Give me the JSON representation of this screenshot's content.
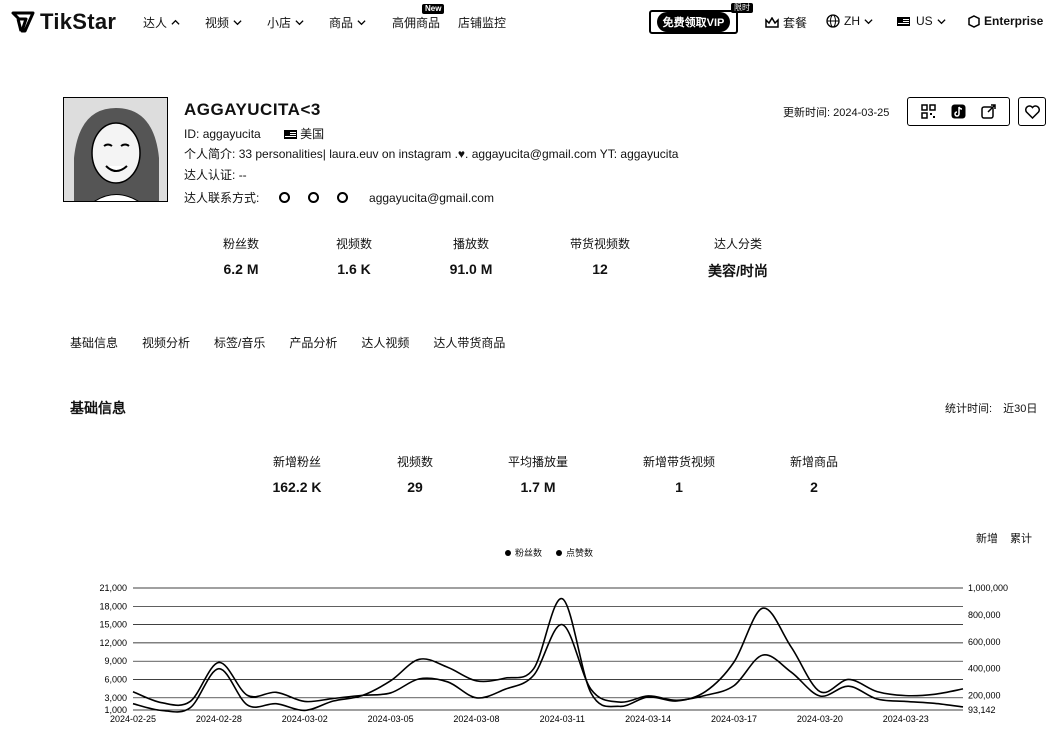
{
  "brand": {
    "name": "TikStar"
  },
  "nav": {
    "items": [
      {
        "label": "达人",
        "chevron": "up"
      },
      {
        "label": "视频",
        "chevron": "down"
      },
      {
        "label": "小店",
        "chevron": "down"
      },
      {
        "label": "商品",
        "chevron": "down"
      },
      {
        "label": "高佣商品",
        "badge": "New"
      },
      {
        "label": "店铺监控"
      }
    ],
    "vip_label": "免费领取VIP",
    "vip_badge": "限时",
    "plan_label": "套餐",
    "lang_label": "ZH",
    "region_label": "US",
    "enterprise_label": "Enterprise"
  },
  "profile": {
    "name": "AGGAYUCITA<3",
    "id_label": "ID:",
    "id_value": "aggayucita",
    "country": "美国",
    "bio_label": "个人简介:",
    "bio_value": "33 personalities| laura.euv on instagram .♥. aggayucita@gmail.com YT: aggayucita",
    "verify_label": "达人认证:",
    "verify_value": "--",
    "contact_label": "达人联系方式:",
    "contact_email": "aggayucita@gmail.com",
    "update_label": "更新时间:",
    "update_value": "2024-03-25"
  },
  "overview_stats": [
    {
      "label": "粉丝数",
      "value": "6.2 M"
    },
    {
      "label": "视频数",
      "value": "1.6 K"
    },
    {
      "label": "播放数",
      "value": "91.0 M"
    },
    {
      "label": "带货视频数",
      "value": "12"
    },
    {
      "label": "达人分类",
      "value": "美容/时尚"
    }
  ],
  "tabs": [
    "基础信息",
    "视频分析",
    "标签/音乐",
    "产品分析",
    "达人视频",
    "达人带货商品"
  ],
  "basic": {
    "title": "基础信息",
    "stat_time_label": "统计时间:",
    "stat_time_value": "近30日",
    "stats": [
      {
        "label": "新增粉丝",
        "value": "162.2 K"
      },
      {
        "label": "视频数",
        "value": "29"
      },
      {
        "label": "平均播放量",
        "value": "1.7 M"
      },
      {
        "label": "新增带货视频",
        "value": "1"
      },
      {
        "label": "新增商品",
        "value": "2"
      }
    ],
    "toggle_new": "新增",
    "toggle_total": "累计"
  },
  "chart_data": {
    "type": "line",
    "x": [
      "2024-02-25",
      "2024-02-26",
      "2024-02-27",
      "2024-02-28",
      "2024-02-29",
      "2024-03-01",
      "2024-03-02",
      "2024-03-03",
      "2024-03-04",
      "2024-03-05",
      "2024-03-06",
      "2024-03-07",
      "2024-03-08",
      "2024-03-09",
      "2024-03-10",
      "2024-03-11",
      "2024-03-12",
      "2024-03-13",
      "2024-03-14",
      "2024-03-15",
      "2024-03-16",
      "2024-03-17",
      "2024-03-18",
      "2024-03-19",
      "2024-03-20",
      "2024-03-21",
      "2024-03-22",
      "2024-03-23",
      "2024-03-24",
      "2024-03-25"
    ],
    "x_tick_labels": [
      "2024-02-25",
      "2024-02-28",
      "2024-03-02",
      "2024-03-05",
      "2024-03-08",
      "2024-03-11",
      "2024-03-14",
      "2024-03-17",
      "2024-03-20",
      "2024-03-23"
    ],
    "series": [
      {
        "name": "粉丝数",
        "axis": "left",
        "values": [
          4000,
          2200,
          2400,
          8800,
          3400,
          3900,
          2400,
          2900,
          3400,
          3800,
          6100,
          5600,
          3000,
          4400,
          6700,
          15000,
          4400,
          2300,
          3300,
          2600,
          3400,
          5000,
          10000,
          7200,
          3300,
          4900,
          2800,
          2400,
          2100,
          1500
        ]
      },
      {
        "name": "点赞数",
        "axis": "right",
        "values": [
          140000,
          90000,
          110000,
          400000,
          130000,
          140000,
          90000,
          160000,
          200000,
          310000,
          470000,
          410000,
          310000,
          330000,
          400000,
          920000,
          220000,
          120000,
          190000,
          160000,
          230000,
          450000,
          850000,
          560000,
          230000,
          320000,
          230000,
          200000,
          210000,
          250000
        ]
      }
    ],
    "yleft_ticks": [
      "1,000",
      "3,000",
      "6,000",
      "9,000",
      "12,000",
      "15,000",
      "18,000",
      "21,000"
    ],
    "yleft_range": [
      1000,
      21000
    ],
    "yright_ticks": [
      "93,142",
      "200,000",
      "400,000",
      "600,000",
      "800,000",
      "1,000,000"
    ],
    "yright_range": [
      93142,
      1000000
    ],
    "legend": [
      "粉丝数",
      "点赞数"
    ],
    "legend_position": "top-center",
    "grid": true
  }
}
